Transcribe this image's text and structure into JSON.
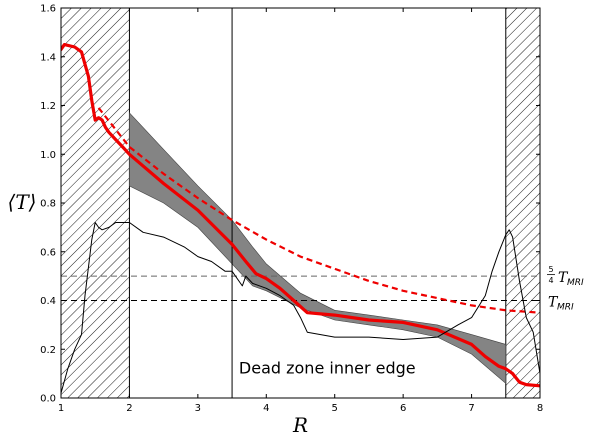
{
  "chart_data": {
    "type": "line",
    "xlabel": "R",
    "ylabel": "⟨T⟩",
    "xlim": [
      1,
      8
    ],
    "ylim": [
      0,
      1.6
    ],
    "x_ticks": [
      1,
      2,
      3,
      4,
      5,
      6,
      7,
      8
    ],
    "y_ticks": [
      0.0,
      0.2,
      0.4,
      0.6,
      0.8,
      1.0,
      1.2,
      1.4,
      1.6
    ],
    "hatched_regions": [
      [
        1,
        2
      ],
      [
        7.5,
        8
      ]
    ],
    "vertical_line_x": 3.5,
    "annotation": "Dead zone inner edge",
    "reference_lines": [
      {
        "y": 0.5,
        "label_frac": "5",
        "label_den": "4",
        "label_main": "T",
        "label_sub": "MRI",
        "color": "#666666"
      },
      {
        "y": 0.4,
        "label_main": "T",
        "label_sub": "MRI",
        "color": "#000000"
      }
    ],
    "band": {
      "x": [
        2.0,
        2.5,
        3.0,
        3.5,
        3.8,
        4.0,
        4.5,
        5.0,
        5.5,
        6.0,
        6.5,
        7.0,
        7.5
      ],
      "upper": [
        1.17,
        1.02,
        0.87,
        0.73,
        0.62,
        0.55,
        0.43,
        0.36,
        0.34,
        0.32,
        0.3,
        0.26,
        0.22
      ],
      "lower": [
        0.87,
        0.8,
        0.7,
        0.55,
        0.46,
        0.44,
        0.37,
        0.32,
        0.3,
        0.28,
        0.25,
        0.18,
        0.06
      ]
    },
    "series": [
      {
        "style": "mean",
        "color": "#ee0000",
        "x": [
          1.0,
          1.05,
          1.2,
          1.3,
          1.4,
          1.45,
          1.5,
          1.55,
          1.6,
          1.65,
          1.7,
          1.8,
          1.9,
          2.0,
          2.5,
          3.0,
          3.5,
          3.7,
          3.85,
          4.0,
          4.2,
          4.4,
          4.6,
          5.0,
          5.5,
          6.0,
          6.5,
          7.0,
          7.2,
          7.4,
          7.5,
          7.6,
          7.7,
          7.8,
          8.0
        ],
        "y": [
          1.43,
          1.45,
          1.44,
          1.42,
          1.32,
          1.22,
          1.14,
          1.15,
          1.14,
          1.11,
          1.09,
          1.06,
          1.03,
          1.0,
          0.88,
          0.77,
          0.63,
          0.56,
          0.51,
          0.49,
          0.45,
          0.4,
          0.35,
          0.34,
          0.32,
          0.31,
          0.28,
          0.22,
          0.17,
          0.13,
          0.12,
          0.1,
          0.065,
          0.055,
          0.05
        ]
      },
      {
        "style": "dashed",
        "color": "#ee0000",
        "x": [
          1.55,
          2.0,
          2.5,
          3.0,
          3.5,
          4.0,
          4.5,
          5.0,
          5.5,
          6.0,
          6.5,
          7.0,
          7.5,
          8.0
        ],
        "y": [
          1.19,
          1.03,
          0.92,
          0.82,
          0.73,
          0.65,
          0.58,
          0.53,
          0.48,
          0.44,
          0.41,
          0.38,
          0.36,
          0.35
        ]
      },
      {
        "style": "thin",
        "color": "#000000",
        "x": [
          1.0,
          1.1,
          1.2,
          1.3,
          1.35,
          1.45,
          1.5,
          1.55,
          1.6,
          1.7,
          1.8,
          1.9,
          2.0,
          2.2,
          2.5,
          2.8,
          3.0,
          3.2,
          3.4,
          3.5,
          3.6,
          3.65,
          3.7,
          3.8,
          4.0,
          4.2,
          4.4,
          4.5,
          4.6,
          5.0,
          5.5,
          6.0,
          6.5,
          6.8,
          7.0,
          7.2,
          7.3,
          7.4,
          7.5,
          7.55,
          7.6,
          7.7,
          7.8,
          7.9,
          8.0
        ],
        "y": [
          0.02,
          0.12,
          0.2,
          0.26,
          0.42,
          0.65,
          0.72,
          0.7,
          0.69,
          0.7,
          0.72,
          0.72,
          0.72,
          0.68,
          0.66,
          0.62,
          0.58,
          0.56,
          0.52,
          0.52,
          0.48,
          0.46,
          0.5,
          0.47,
          0.45,
          0.42,
          0.38,
          0.33,
          0.27,
          0.25,
          0.25,
          0.24,
          0.25,
          0.3,
          0.33,
          0.42,
          0.52,
          0.6,
          0.67,
          0.69,
          0.66,
          0.48,
          0.33,
          0.27,
          0.1
        ]
      }
    ]
  }
}
